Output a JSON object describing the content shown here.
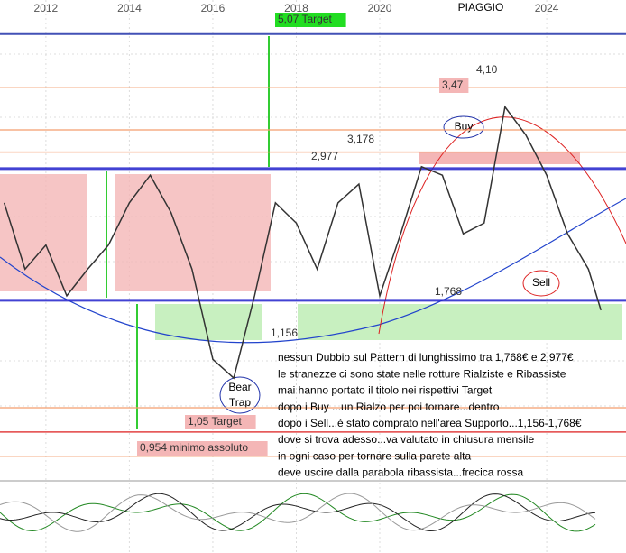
{
  "chart_data": {
    "type": "line",
    "title": "PIAGGIO",
    "log_scale": true,
    "xlim": [
      2010.9,
      2025.9
    ],
    "xticks": [
      2012,
      2014,
      2016,
      2018,
      2020,
      2024
    ],
    "ylim": [
      0.875,
      5.8
    ],
    "series": [
      {
        "color": "#333333",
        "x": [
          2011.0,
          2011.5,
          2012.0,
          2012.5,
          2013.0,
          2013.5,
          2014.0,
          2014.5,
          2015.0,
          2015.5,
          2016.0,
          2016.5,
          2017.0,
          2017.5,
          2018.0,
          2018.5,
          2019.0,
          2019.5,
          2020.0,
          2020.5,
          2021.0,
          2021.5,
          2022.0,
          2022.5,
          2023.0,
          2023.5,
          2024.0,
          2024.5,
          2025.0,
          2025.3
        ],
        "values": [
          2.6,
          2.0,
          2.2,
          1.8,
          2.0,
          2.2,
          2.6,
          2.9,
          2.5,
          2.0,
          1.4,
          1.3,
          1.8,
          2.6,
          2.4,
          2.0,
          2.6,
          2.8,
          1.8,
          2.3,
          3.0,
          2.9,
          2.3,
          2.4,
          3.8,
          3.4,
          2.9,
          2.3,
          2.0,
          1.7
        ]
      }
    ],
    "levels": [
      {
        "label": "5,07 Target",
        "value": 5.07,
        "color": "#2233aa"
      },
      {
        "label": "4,10",
        "value": 4.1,
        "color": "#f4a070"
      },
      {
        "label": "3,47",
        "value": 3.47,
        "color": "#f4a070"
      },
      {
        "label": "3,178",
        "value": 3.178,
        "color": "#f4a070"
      },
      {
        "label": "2,977",
        "value": 2.977,
        "color": "#2222cc"
      },
      {
        "label": "1,768",
        "value": 1.768,
        "color": "#2222cc"
      },
      {
        "label": "1,156",
        "value": 1.156,
        "color": "#f4a070"
      },
      {
        "label": "1,05 Target",
        "value": 1.05,
        "color": "#dd2222"
      },
      {
        "label": "0,954 minimo assoluto",
        "value": 0.954,
        "color": "#f4a070"
      }
    ],
    "callouts": {
      "buy": "Buy",
      "sell": "Sell",
      "bear_trap": [
        "Bear",
        "Trap"
      ]
    },
    "note": [
      "nessun Dubbio sul Pattern di lunghissimo tra 1,768€ e 2,977€",
      "le stranezze ci sono state nelle rotture Rialziste e Ribassiste",
      "mai hanno portato il titolo nei rispettivi Target",
      "dopo i Buy ...un Rialzo per poi tornare...dentro",
      "dopo i Sell...è stato comprato nell'area Supporto...1,156-1,768€",
      "dove si trova adesso...va valutato in chiusura mensile",
      "in ogni caso per tornare sulla parete alta",
      "deve uscire dalla parabola ribassista...frecica rossa"
    ]
  }
}
